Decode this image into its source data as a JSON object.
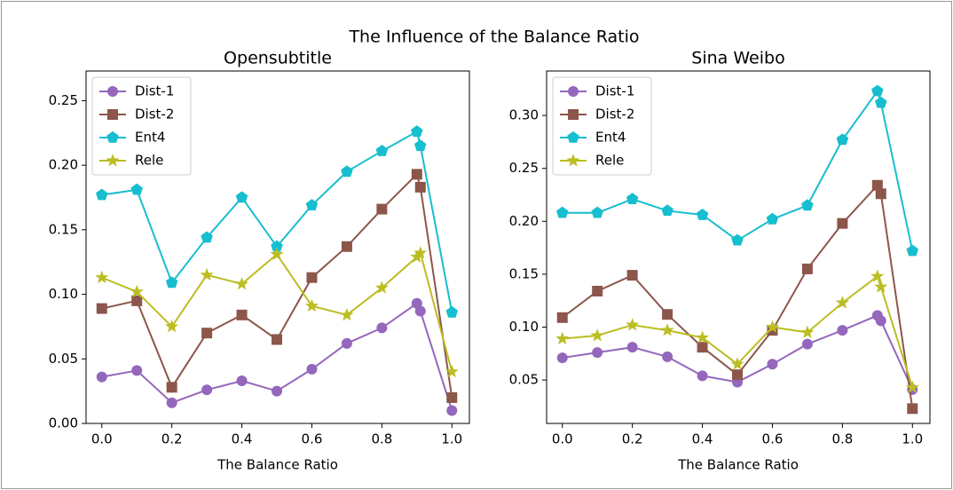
{
  "title": "The Influence of the Balance Ratio",
  "chart_data": [
    {
      "type": "line",
      "title": "Opensubtitle",
      "xlabel": "The Balance Ratio",
      "x": [
        0.0,
        0.1,
        0.2,
        0.3,
        0.4,
        0.5,
        0.6,
        0.7,
        0.8,
        0.9,
        0.91,
        1.0
      ],
      "xlim": [
        -0.045,
        1.05
      ],
      "xticks": [
        {
          "value": 0,
          "label": "0.0"
        },
        0.2,
        0.4,
        0.6,
        0.8,
        {
          "value": 1,
          "label": "1.0"
        }
      ],
      "ylim": [
        0,
        0.273
      ],
      "yticks": [
        {
          "value": 0,
          "label": "0.00"
        },
        0.05,
        {
          "value": 0.1,
          "label": "0.10"
        },
        0.15,
        {
          "value": 0.2,
          "label": "0.20"
        },
        0.25
      ],
      "legend": "upper left",
      "series": [
        {
          "name": "Dist-1",
          "color": "#9467bd",
          "marker": "circle",
          "values": [
            0.036,
            0.041,
            0.016,
            0.026,
            0.033,
            0.025,
            0.042,
            0.062,
            0.074,
            0.093,
            0.087,
            0.01
          ]
        },
        {
          "name": "Dist-2",
          "color": "#8c564b",
          "marker": "square",
          "values": [
            0.089,
            0.095,
            0.028,
            0.07,
            0.084,
            0.065,
            0.113,
            0.137,
            0.166,
            0.193,
            0.183,
            0.02
          ]
        },
        {
          "name": "Ent4",
          "color": "#17becf",
          "marker": "pentagon",
          "values": [
            0.177,
            0.181,
            0.109,
            0.144,
            0.175,
            0.137,
            0.169,
            0.195,
            0.211,
            0.226,
            0.215,
            0.086
          ]
        },
        {
          "name": "Rele",
          "color": "#bcbd22",
          "marker": "star",
          "values": [
            0.113,
            0.102,
            0.075,
            0.115,
            0.108,
            0.131,
            0.091,
            0.084,
            0.105,
            0.129,
            0.132,
            0.04
          ]
        }
      ]
    },
    {
      "type": "line",
      "title": "Sina Weibo",
      "xlabel": "The Balance Ratio",
      "x": [
        0.0,
        0.1,
        0.2,
        0.3,
        0.4,
        0.5,
        0.6,
        0.7,
        0.8,
        0.9,
        0.91,
        1.0
      ],
      "xlim": [
        -0.045,
        1.05
      ],
      "xticks": [
        {
          "value": 0,
          "label": "0.0"
        },
        0.2,
        0.4,
        0.6,
        0.8,
        {
          "value": 1,
          "label": "1.0"
        }
      ],
      "ylim": [
        0.009,
        0.342
      ],
      "yticks": [
        0.05,
        {
          "value": 0.1,
          "label": "0.10"
        },
        0.15,
        {
          "value": 0.2,
          "label": "0.20"
        },
        0.25,
        {
          "value": 0.3,
          "label": "0.30"
        }
      ],
      "legend": "upper left",
      "series": [
        {
          "name": "Dist-1",
          "color": "#9467bd",
          "marker": "circle",
          "values": [
            0.071,
            0.076,
            0.081,
            0.072,
            0.054,
            0.048,
            0.065,
            0.084,
            0.097,
            0.111,
            0.106,
            0.041
          ]
        },
        {
          "name": "Dist-2",
          "color": "#8c564b",
          "marker": "square",
          "values": [
            0.109,
            0.134,
            0.149,
            0.112,
            0.081,
            0.055,
            0.097,
            0.155,
            0.198,
            0.234,
            0.226,
            0.023
          ]
        },
        {
          "name": "Ent4",
          "color": "#17becf",
          "marker": "pentagon",
          "values": [
            0.208,
            0.208,
            0.221,
            0.21,
            0.206,
            0.182,
            0.202,
            0.215,
            0.277,
            0.323,
            0.312,
            0.172
          ]
        },
        {
          "name": "Rele",
          "color": "#bcbd22",
          "marker": "star",
          "values": [
            0.089,
            0.092,
            0.102,
            0.097,
            0.09,
            0.065,
            0.1,
            0.095,
            0.123,
            0.148,
            0.138,
            0.043
          ]
        }
      ]
    }
  ]
}
